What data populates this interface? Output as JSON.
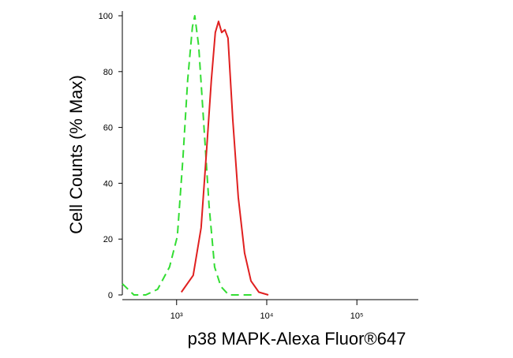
{
  "chart_data": {
    "type": "line",
    "x_label": "p38 MAPK-Alexa Fluor®647",
    "y_label": "Cell Counts (% Max)",
    "xlog": true,
    "xlim": [
      250,
      480000
    ],
    "xticks": [
      {
        "value": 1000,
        "label": "10³"
      },
      {
        "value": 10000,
        "label": "10⁴"
      },
      {
        "value": 100000,
        "label": "10⁵"
      }
    ],
    "ylim": [
      0,
      100
    ],
    "yticks": [
      0,
      20,
      40,
      60,
      80,
      100
    ],
    "series": [
      {
        "color": "#33dd33",
        "dashed": true,
        "x": [
          250,
          336,
          455,
          615,
          834,
          1020,
          1175,
          1327,
          1497,
          1592,
          1761,
          1988,
          2290,
          2640,
          3100,
          3790,
          6950
        ],
        "values": [
          4,
          0,
          0,
          2,
          10,
          21,
          49,
          77,
          96,
          100,
          89,
          63,
          32,
          10,
          3,
          0,
          0
        ]
      },
      {
        "color": "#e02020",
        "dashed": false,
        "x": [
          1129,
          1528,
          1871,
          2153,
          2430,
          2690,
          2918,
          3162,
          3428,
          3716,
          4198,
          4833,
          5679,
          6680,
          8170,
          10420
        ],
        "values": [
          1,
          7,
          24,
          52,
          77,
          94,
          98,
          94,
          95,
          92,
          63,
          35,
          15,
          5,
          1,
          0
        ]
      }
    ]
  }
}
